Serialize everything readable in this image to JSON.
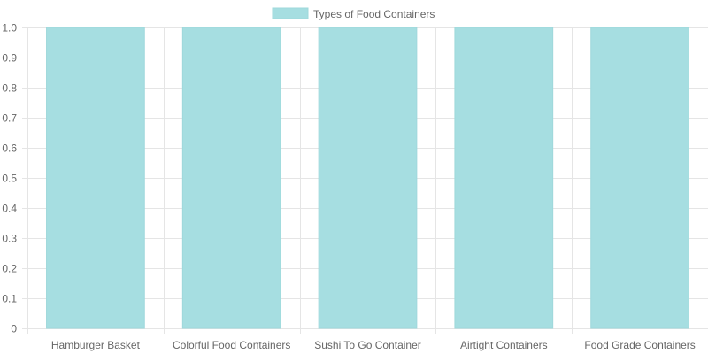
{
  "chart_data": {
    "type": "bar",
    "categories": [
      "Hamburger Basket",
      "Colorful Food Containers",
      "Sushi To Go Container",
      "Airtight Containers",
      "Food Grade Containers"
    ],
    "series": [
      {
        "name": "Types of Food Containers",
        "values": [
          1,
          1,
          1,
          1,
          1
        ]
      }
    ],
    "title": "",
    "xlabel": "",
    "ylabel": "",
    "ylim": [
      0,
      1
    ],
    "yticks": [
      "0",
      "0.1",
      "0.2",
      "0.3",
      "0.4",
      "0.5",
      "0.6",
      "0.7",
      "0.8",
      "0.9",
      "1.0"
    ],
    "grid": true,
    "legend_position": "top",
    "colors": {
      "bar_fill": "#a6dee1",
      "bar_stroke": "#9fd8db",
      "grid": "#e5e5e5",
      "tick_text": "#666666"
    }
  }
}
